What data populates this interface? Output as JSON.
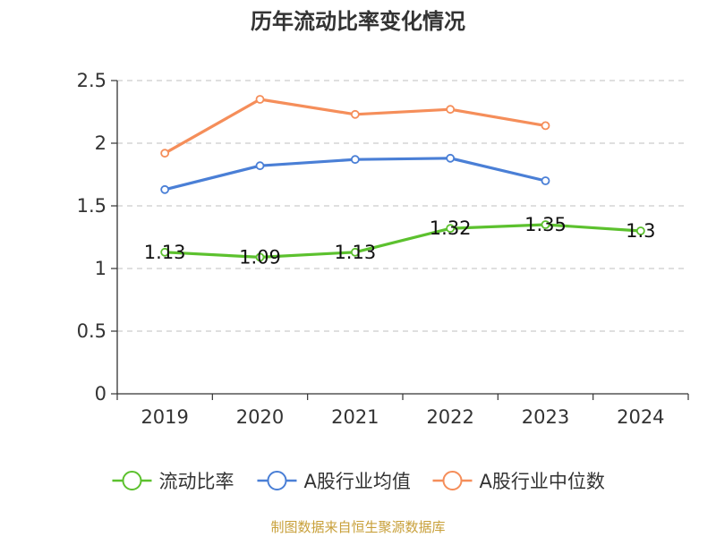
{
  "chart_data": {
    "type": "line",
    "title": "历年流动比率变化情况",
    "categories": [
      "2019",
      "2020",
      "2021",
      "2022",
      "2023",
      "2024"
    ],
    "ylim": [
      0,
      2.5
    ],
    "yticks": [
      "0",
      "0.5",
      "1",
      "1.5",
      "2",
      "2.5"
    ],
    "ytick_values": [
      0,
      0.5,
      1,
      1.5,
      2,
      2.5
    ],
    "grid": true,
    "legend_position": "bottom",
    "series": [
      {
        "name": "流动比率",
        "color": "#5cc12e",
        "values": [
          1.13,
          1.09,
          1.13,
          1.32,
          1.35,
          1.3
        ],
        "data_labels": [
          "1.13",
          "1.09",
          "1.13",
          "1.32",
          "1.35",
          "1.3"
        ]
      },
      {
        "name": "A股行业均值",
        "color": "#4a7fd6",
        "values": [
          1.63,
          1.82,
          1.87,
          1.88,
          1.7,
          null
        ]
      },
      {
        "name": "A股行业中位数",
        "color": "#f58e5a",
        "values": [
          1.92,
          2.35,
          2.23,
          2.27,
          2.14,
          null
        ]
      }
    ],
    "source": "制图数据来自恒生聚源数据库"
  }
}
